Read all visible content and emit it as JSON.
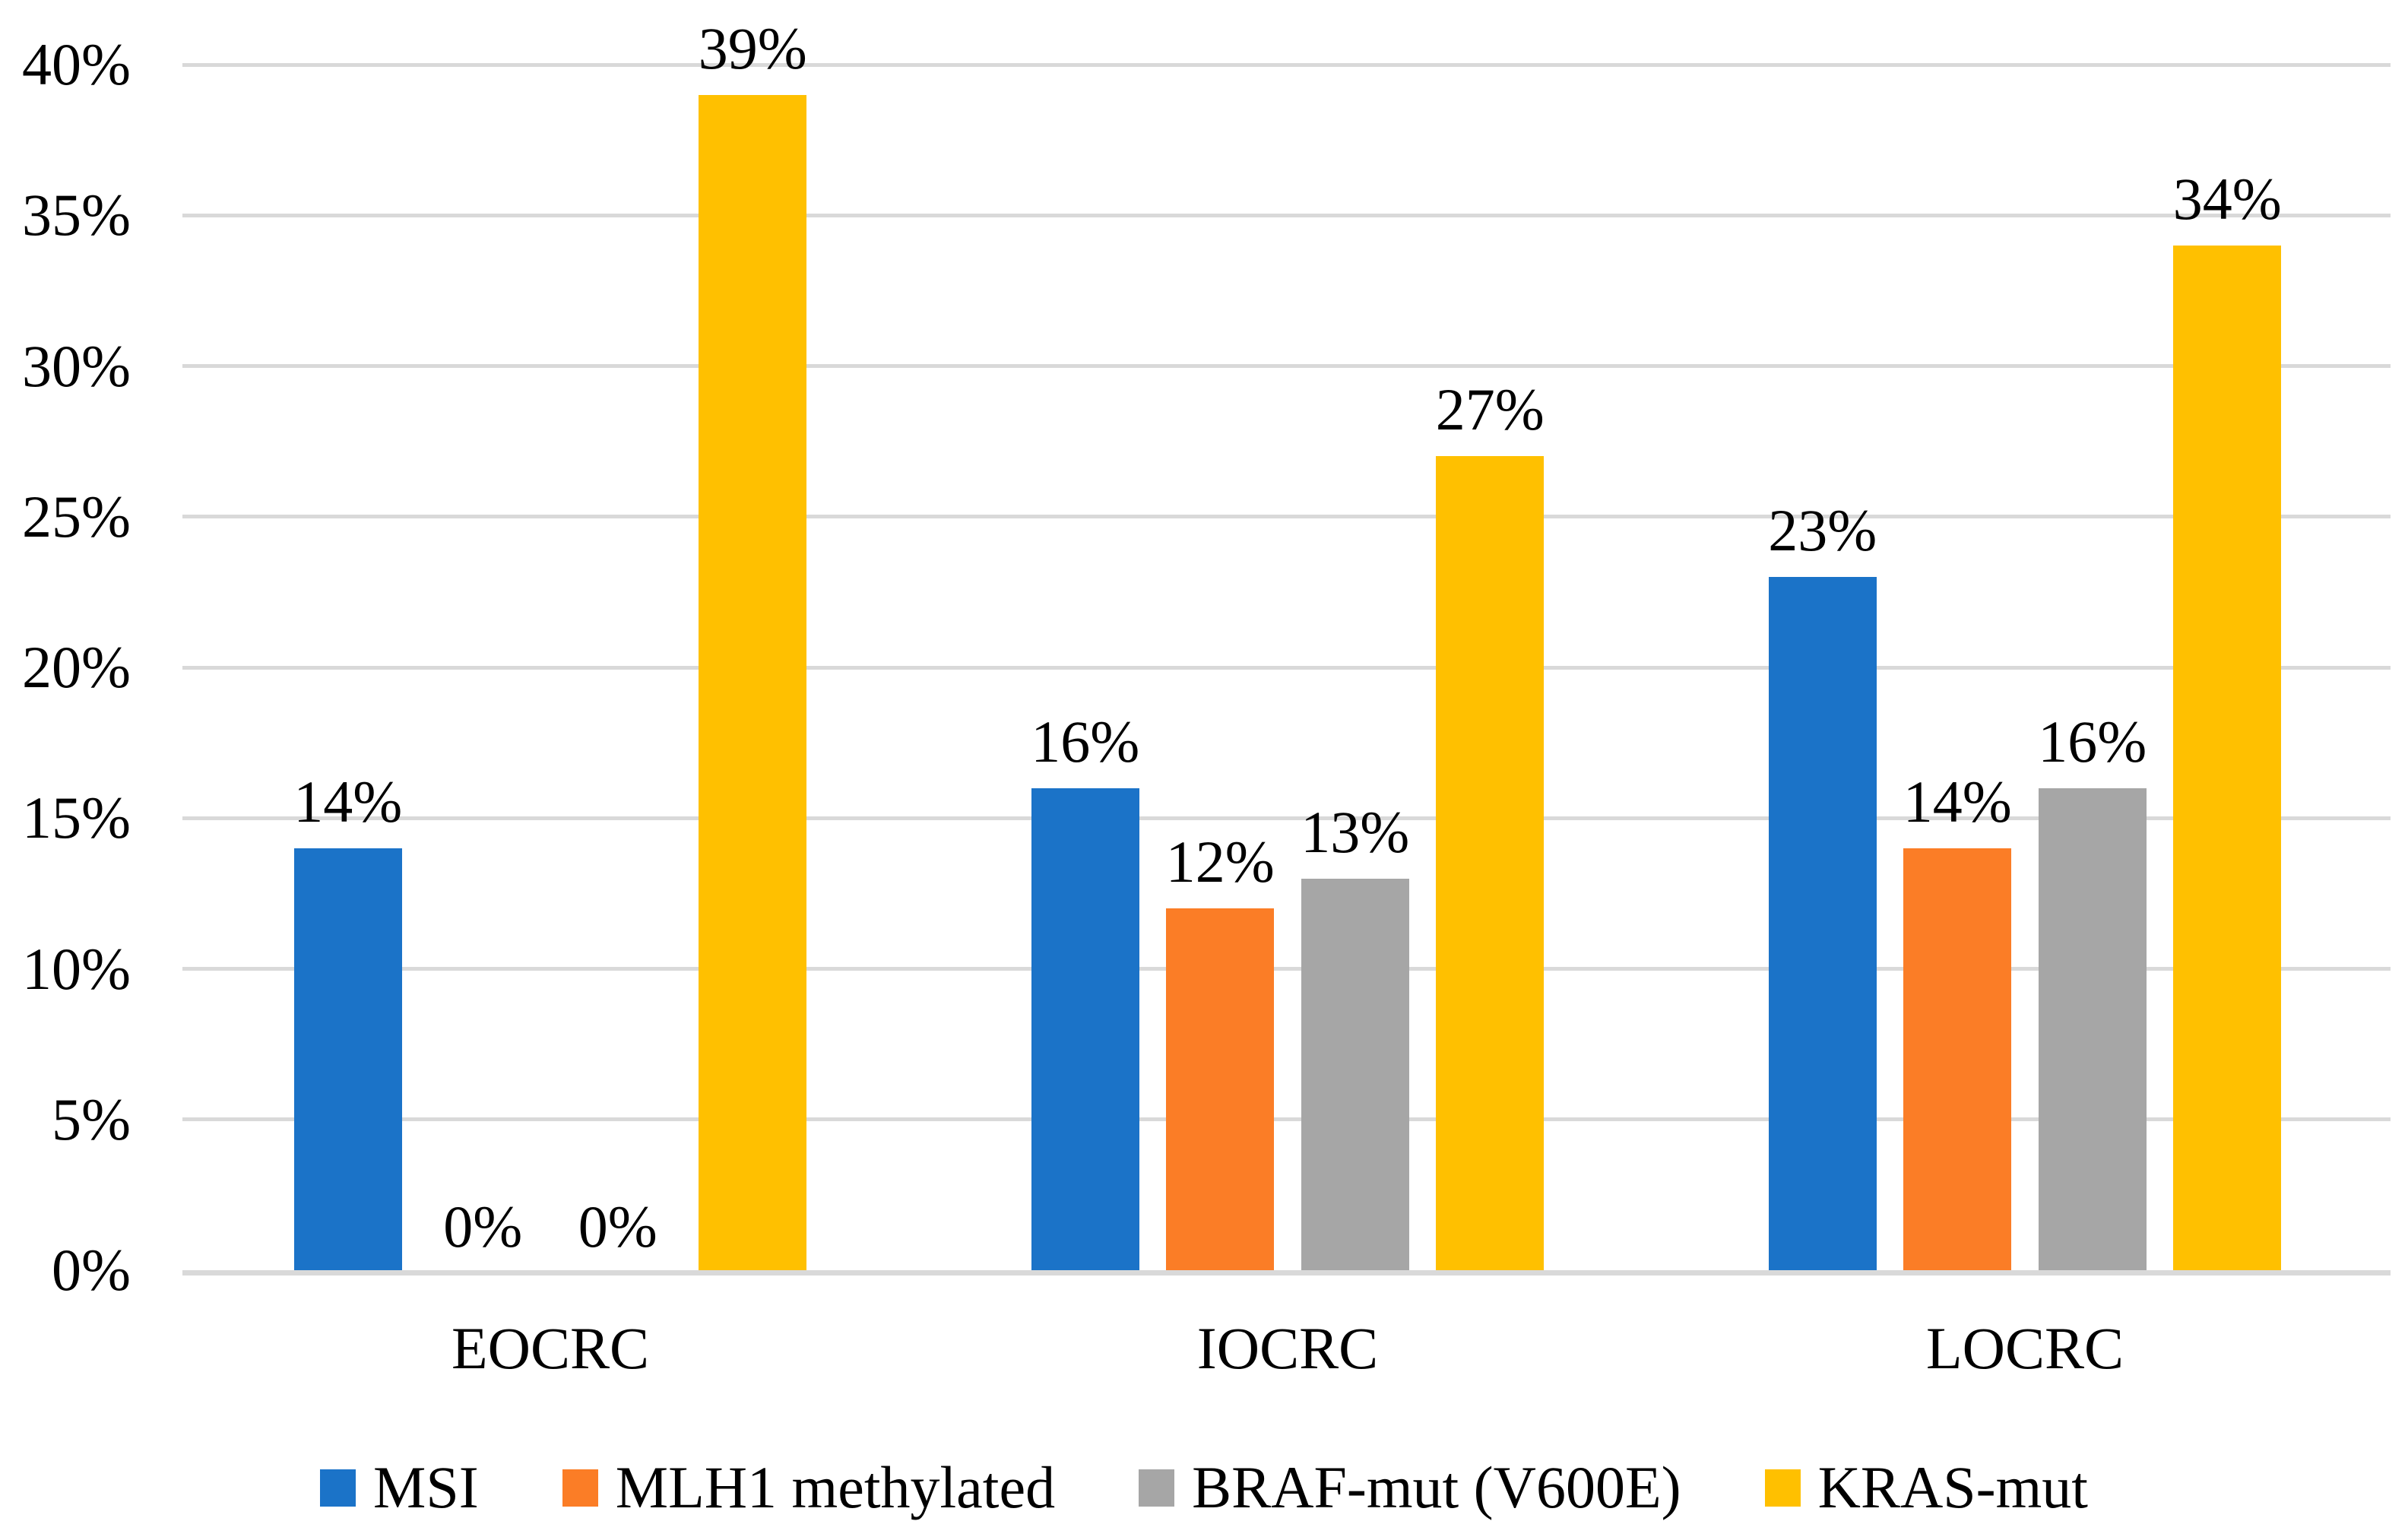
{
  "chart_data": {
    "type": "bar",
    "title": "",
    "xlabel": "",
    "ylabel": "",
    "categories": [
      "EOCRC",
      "IOCRC",
      "LOCRC"
    ],
    "series": [
      {
        "name": "MSI",
        "color": "#1B73C8",
        "values": [
          14,
          16,
          23
        ]
      },
      {
        "name": "MLH1 methylated",
        "color": "#FB7D26",
        "values": [
          0,
          12,
          14
        ]
      },
      {
        "name": "BRAF-mut (V600E)",
        "color": "#A6A6A6",
        "values": [
          0,
          13,
          16
        ]
      },
      {
        "name": "KRAS-mut",
        "color": "#FFC000",
        "values": [
          39,
          27,
          34
        ]
      }
    ],
    "value_label_suffix": "%",
    "y_ticks": [
      "0%",
      "5%",
      "10%",
      "15%",
      "20%",
      "25%",
      "30%",
      "35%",
      "40%"
    ],
    "y_tick_values": [
      0,
      5,
      10,
      15,
      20,
      25,
      30,
      35,
      40
    ],
    "ylim": [
      0,
      40
    ],
    "grid": true,
    "gridline_color": "#D9D9D9",
    "text_color": "#000000",
    "legend_position": "bottom"
  }
}
